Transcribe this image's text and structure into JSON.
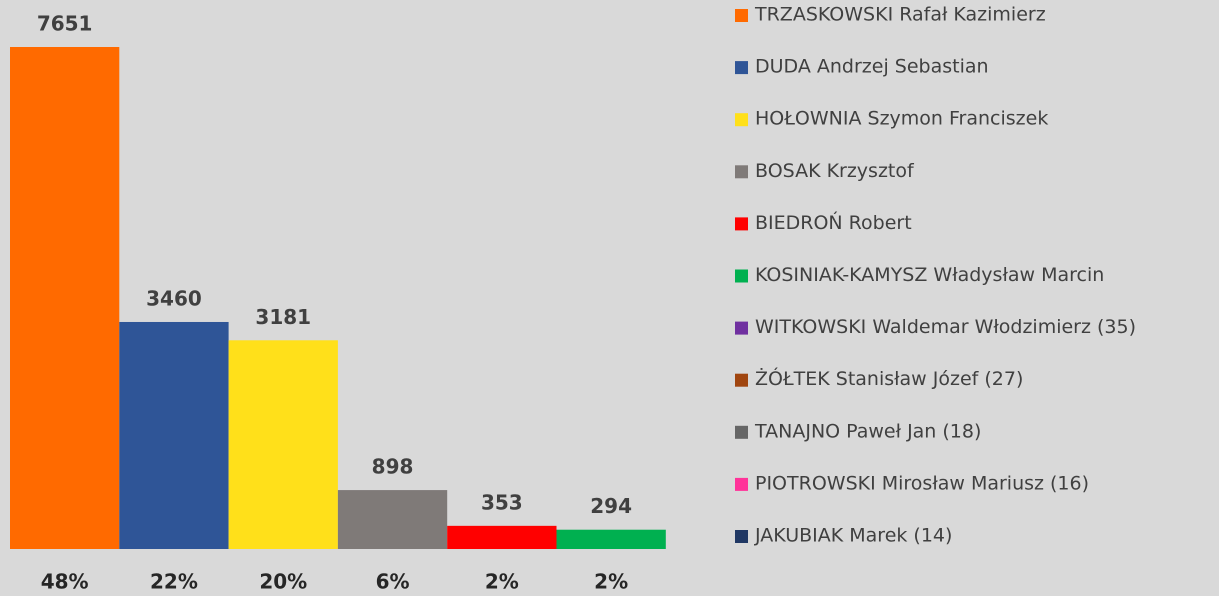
{
  "chart_data": {
    "type": "bar",
    "categories": [
      "48%",
      "22%",
      "20%",
      "6%",
      "2%",
      "2%"
    ],
    "values": [
      7651,
      3460,
      3181,
      898,
      353,
      294
    ],
    "legend": [
      {
        "name": "TRZASKOWSKI Rafał Kazimierz",
        "color": "#ff6a00"
      },
      {
        "name": "DUDA Andrzej Sebastian",
        "color": "#2f5597"
      },
      {
        "name": "HOŁOWNIA Szymon Franciszek",
        "color": "#ffe01a"
      },
      {
        "name": "BOSAK Krzysztof",
        "color": "#7f7a78"
      },
      {
        "name": "BIEDROŃ Robert",
        "color": "#ff0000"
      },
      {
        "name": "KOSINIAK-KAMYSZ Władysław Marcin",
        "color": "#00b050"
      },
      {
        "name": "WITKOWSKI Waldemar Włodzimierz (35)",
        "color": "#7030a0"
      },
      {
        "name": "ŻÓŁTEK Stanisław Józef (27)",
        "color": "#a0450f"
      },
      {
        "name": "TANAJNO Paweł Jan (18)",
        "color": "#666666"
      },
      {
        "name": "PIOTROWSKI Mirosław Mariusz (16)",
        "color": "#ff3399"
      },
      {
        "name": "JAKUBIAK Marek (14)",
        "color": "#203864"
      }
    ]
  }
}
